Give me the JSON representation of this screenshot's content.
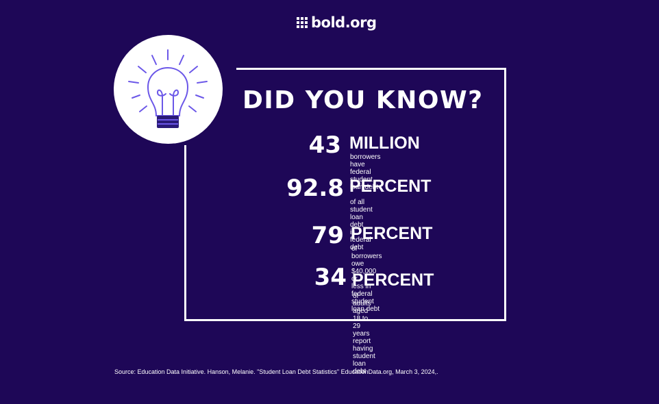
{
  "brand": {
    "name": "bold.org"
  },
  "headline": "DID YOU KNOW?",
  "stats": [
    {
      "number": "43",
      "unit": "MILLION",
      "description": "borrowers have federal\nstudent loan debt"
    },
    {
      "number": "92.8",
      "unit": "PERCENT",
      "description": "of all student loan debt\n is federal debt"
    },
    {
      "number": "79",
      "unit": "PERCENT",
      "description": "of borrowers owe $40,000 or\nless in federal student loan debt"
    },
    {
      "number": "34",
      "unit": "PERCENT",
      "description": "of adults aged 18 to 29 years\nreport having student loan debt"
    }
  ],
  "source": "Source: Education Data Initiative. Hanson, Melanie. \"Student Loan Debt Statistics\" EducationData.org, March 3, 2024,.",
  "icons": {
    "bulb": "lightbulb-icon",
    "logo": "grid-logo-icon"
  },
  "colors": {
    "background": "#1e0757",
    "foreground": "#ffffff",
    "bulb_accent": "#6b57e8",
    "bulb_base": "#2a1a78"
  }
}
